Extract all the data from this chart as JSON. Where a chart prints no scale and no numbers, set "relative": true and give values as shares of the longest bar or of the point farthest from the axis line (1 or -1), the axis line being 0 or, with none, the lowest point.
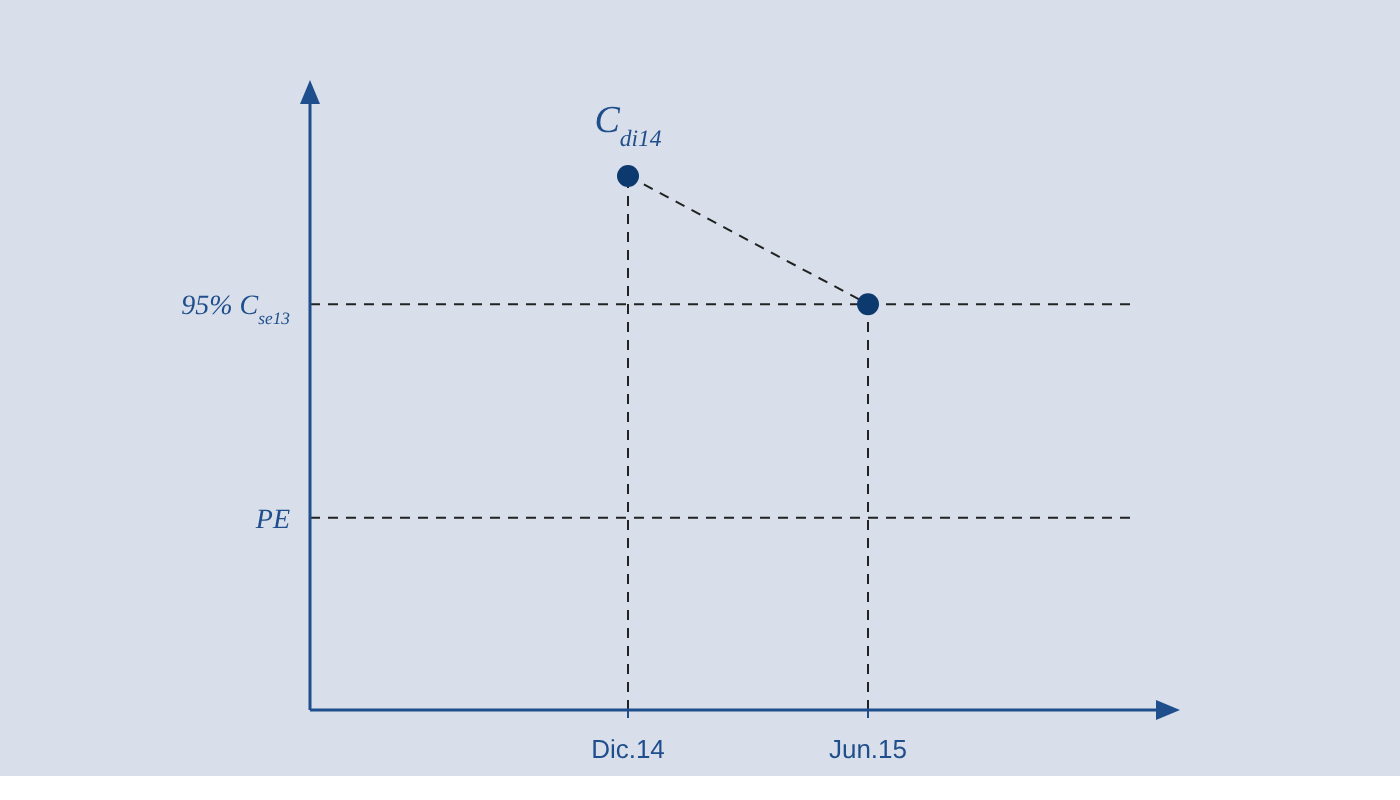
{
  "chart_data": {
    "type": "line",
    "relative": true,
    "categories": [
      "Dic.14",
      "Jun.15"
    ],
    "series": [
      {
        "color": "#0d3a6e",
        "values": [
          1,
          0.76
        ]
      }
    ],
    "marker": "circle",
    "line_style": "dashed",
    "tick_labels": "x",
    "ref_lines": [
      {
        "axis": "y",
        "value": 0.76,
        "label": "95% C$_{se13}$",
        "line_style": "dashed",
        "color": "#222222"
      },
      {
        "axis": "y",
        "value": 0.36,
        "label": "PE",
        "line_style": "dashed",
        "color": "#222222"
      }
    ],
    "annotations": [
      {
        "text": "C$_{di14}$",
        "x": "Dic.14",
        "y": 1
      }
    ]
  }
}
